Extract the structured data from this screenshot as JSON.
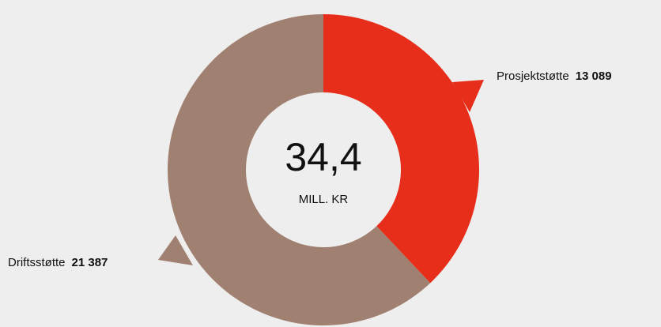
{
  "chart_data": {
    "type": "donut",
    "center_value": "34,4",
    "center_label": "MILL. KR",
    "categories": [
      "Prosjektstøtte",
      "Driftsstøtte"
    ],
    "values": [
      13089,
      21387
    ],
    "value_labels": [
      "13 089",
      "21 387"
    ],
    "colors": [
      "#e62e1b",
      "#a08070"
    ]
  }
}
